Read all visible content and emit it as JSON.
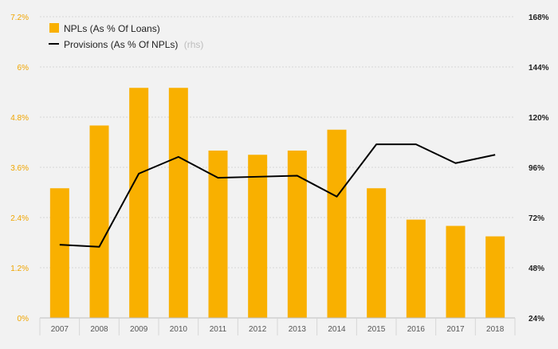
{
  "chart_data": {
    "type": "bar",
    "categories": [
      "2007",
      "2008",
      "2009",
      "2010",
      "2011",
      "2012",
      "2013",
      "2014",
      "2015",
      "2016",
      "2017",
      "2018"
    ],
    "series": [
      {
        "name": "NPLs (As % Of Loans)",
        "type": "bar",
        "axis": "left",
        "color": "#f9b000",
        "values": [
          3.1,
          4.6,
          5.5,
          5.5,
          4.0,
          3.9,
          4.0,
          4.5,
          3.1,
          2.35,
          2.2,
          1.95
        ]
      },
      {
        "name": "Provisions (As % Of NPLs)",
        "name_suffix": "(rhs)",
        "type": "line",
        "axis": "right",
        "color": "#000000",
        "values": [
          59,
          58,
          93,
          101,
          91,
          91.5,
          92,
          82,
          107,
          107,
          98,
          102
        ]
      }
    ],
    "left_axis": {
      "ticks": [
        0,
        1.2,
        2.4,
        3.6,
        4.8,
        6,
        7.2
      ],
      "tick_labels": [
        "0%",
        "1.2%",
        "2.4%",
        "3.6%",
        "4.8%",
        "6%",
        "7.2%"
      ],
      "range": [
        0,
        7.2
      ]
    },
    "right_axis": {
      "ticks": [
        24,
        48,
        72,
        96,
        120,
        144,
        168
      ],
      "tick_labels": [
        "24%",
        "48%",
        "72%",
        "96%",
        "120%",
        "144%",
        "168%"
      ],
      "range": [
        24,
        168
      ]
    },
    "grid": true,
    "legend": "top-left"
  }
}
